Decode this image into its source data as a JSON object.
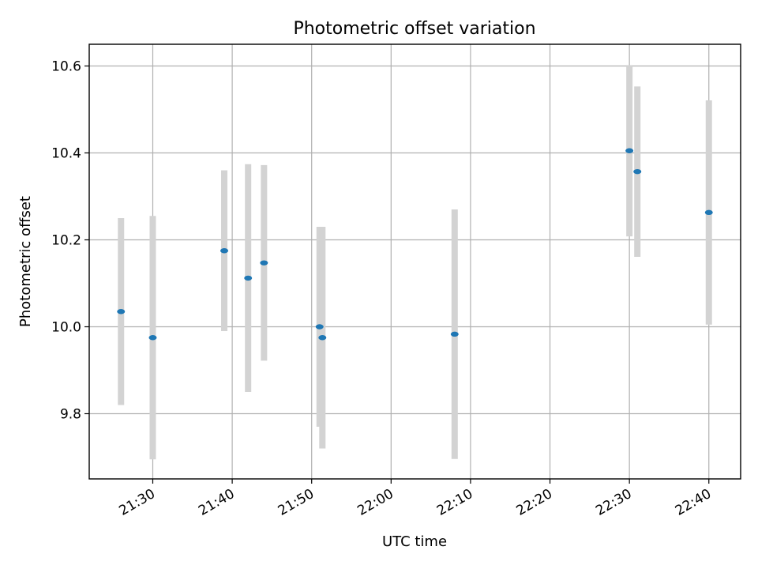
{
  "chart_data": {
    "type": "scatter",
    "title": "Photometric offset variation",
    "xlabel": "UTC time",
    "ylabel": "Photometric offset",
    "x_ticks": [
      "21:30",
      "21:40",
      "21:50",
      "22:00",
      "22:10",
      "22:20",
      "22:30",
      "22:40"
    ],
    "y_ticks": [
      "9.8",
      "10.0",
      "10.2",
      "10.4",
      "10.6"
    ],
    "xlim": [
      "21:22",
      "22:44"
    ],
    "ylim": [
      9.65,
      10.65
    ],
    "grid": true,
    "legend": false,
    "colors": {
      "point": "#1f77b4",
      "errorbar": "#d3d3d3"
    },
    "points": [
      {
        "x": "21:26",
        "y": 10.035,
        "err": 0.215
      },
      {
        "x": "21:30",
        "y": 9.975,
        "err": 0.28
      },
      {
        "x": "21:39",
        "y": 10.175,
        "err": 0.185
      },
      {
        "x": "21:42",
        "y": 10.112,
        "err": 0.262
      },
      {
        "x": "21:44",
        "y": 10.147,
        "err": 0.225
      },
      {
        "x": "21:51",
        "y": 10.0,
        "err": 0.23
      },
      {
        "x": "21:51",
        "y": 9.975,
        "err": 0.255
      },
      {
        "x": "22:08",
        "y": 9.983,
        "err": 0.287
      },
      {
        "x": "22:30",
        "y": 10.405,
        "err": 0.197
      },
      {
        "x": "22:31",
        "y": 10.357,
        "err": 0.196
      },
      {
        "x": "22:40",
        "y": 10.263,
        "err": 0.258
      }
    ]
  }
}
